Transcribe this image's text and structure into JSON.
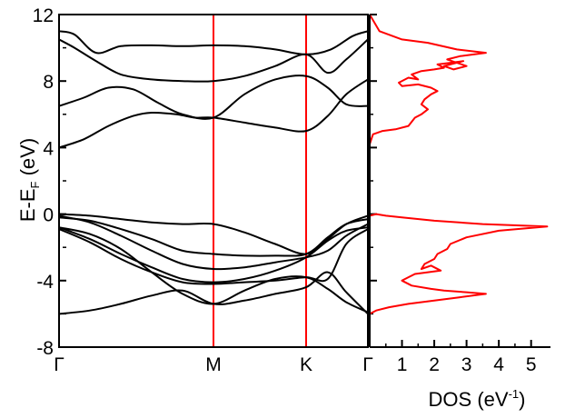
{
  "chart_data": [
    {
      "type": "line",
      "panel": "band structure",
      "ylabel": {
        "main": "E-E",
        "sub": "F",
        "unit": " (eV)"
      },
      "ylim": [
        -8,
        12
      ],
      "yticks": [
        -8,
        -4,
        0,
        4,
        8,
        12
      ],
      "ytick_labels": [
        "-8",
        "-4",
        "0",
        "4",
        "8",
        "12"
      ],
      "kpath_labels": [
        "Γ",
        "M",
        "K",
        "Γ"
      ],
      "kpath_positions": [
        0,
        0.5,
        0.8,
        1.0
      ],
      "vertical_line_color": "#ff0000",
      "band_color": "#000000",
      "bands": [
        {
          "x": [
            0,
            0.05,
            0.12,
            0.2,
            0.3,
            0.4,
            0.5,
            0.6,
            0.7,
            0.8,
            0.88,
            0.95,
            1.0
          ],
          "y": [
            11.0,
            10.8,
            9.7,
            10.1,
            10.15,
            10.1,
            10.15,
            10.1,
            9.9,
            9.6,
            9.9,
            10.7,
            11.0
          ]
        },
        {
          "x": [
            0,
            0.05,
            0.12,
            0.2,
            0.3,
            0.4,
            0.5,
            0.6,
            0.7,
            0.8,
            0.87,
            0.93,
            1.0
          ],
          "y": [
            10.5,
            10.0,
            9.2,
            8.4,
            8.1,
            8.0,
            8.0,
            8.3,
            8.9,
            9.6,
            8.5,
            9.3,
            10.5
          ]
        },
        {
          "x": [
            0,
            0.08,
            0.16,
            0.24,
            0.32,
            0.4,
            0.5,
            0.6,
            0.7,
            0.8,
            0.87,
            0.93,
            1.0
          ],
          "y": [
            6.5,
            7.0,
            7.6,
            7.5,
            6.7,
            6.0,
            5.8,
            7.2,
            8.1,
            8.3,
            7.6,
            6.6,
            6.5
          ]
        },
        {
          "x": [
            0,
            0.08,
            0.16,
            0.24,
            0.3,
            0.38,
            0.44,
            0.5,
            0.6,
            0.7,
            0.8,
            0.87,
            0.93,
            1.0
          ],
          "y": [
            4.0,
            4.5,
            5.3,
            5.9,
            6.1,
            6.0,
            5.8,
            5.8,
            5.5,
            5.2,
            5.0,
            5.9,
            7.2,
            8.1
          ]
        },
        {
          "x": [
            0,
            0.1,
            0.2,
            0.3,
            0.4,
            0.5,
            0.6,
            0.7,
            0.8,
            0.87,
            0.93,
            1.0
          ],
          "y": [
            0.0,
            -0.1,
            -0.3,
            -0.5,
            -0.6,
            -0.6,
            -1.1,
            -1.8,
            -2.4,
            -1.5,
            -0.6,
            -0.1
          ]
        },
        {
          "x": [
            0,
            0.1,
            0.2,
            0.3,
            0.4,
            0.5,
            0.6,
            0.7,
            0.8,
            0.87,
            0.93,
            1.0
          ],
          "y": [
            -0.2,
            -0.4,
            -0.9,
            -1.5,
            -2.2,
            -2.4,
            -2.5,
            -2.5,
            -2.4,
            -1.4,
            -0.6,
            -0.3
          ]
        },
        {
          "x": [
            0,
            0.1,
            0.2,
            0.3,
            0.4,
            0.5,
            0.6,
            0.7,
            0.8,
            0.87,
            0.93,
            1.0
          ],
          "y": [
            -0.8,
            -1.5,
            -2.4,
            -3.2,
            -3.9,
            -4.1,
            -3.9,
            -3.4,
            -2.6,
            -1.6,
            -1.0,
            -0.8
          ]
        },
        {
          "x": [
            0,
            0.1,
            0.2,
            0.3,
            0.4,
            0.5,
            0.6,
            0.7,
            0.8,
            0.87,
            0.93,
            1.0
          ],
          "y": [
            -0.9,
            -1.7,
            -2.7,
            -3.5,
            -4.1,
            -4.2,
            -4.1,
            -4.0,
            -3.8,
            -3.9,
            -1.8,
            -0.9
          ]
        },
        {
          "x": [
            0,
            0.1,
            0.2,
            0.3,
            0.4,
            0.5,
            0.6,
            0.7,
            0.8,
            0.87,
            0.93,
            1.0
          ],
          "y": [
            -0.1,
            -0.5,
            -1.3,
            -2.2,
            -3.0,
            -3.3,
            -3.2,
            -2.9,
            -2.6,
            -2.2,
            -1.3,
            -0.6
          ]
        },
        {
          "x": [
            0,
            0.1,
            0.2,
            0.3,
            0.4,
            0.5,
            0.6,
            0.7,
            0.8,
            0.87,
            0.93,
            1.0
          ],
          "y": [
            -6.0,
            -5.8,
            -5.4,
            -4.9,
            -4.6,
            -5.4,
            -5.2,
            -4.8,
            -4.4,
            -3.5,
            -4.7,
            -6.0
          ]
        },
        {
          "x": [
            0,
            0.1,
            0.2,
            0.3,
            0.4,
            0.5,
            0.6,
            0.7,
            0.8,
            0.87,
            0.93,
            1.0
          ],
          "y": [
            -0.8,
            -1.2,
            -2.1,
            -3.5,
            -4.8,
            -5.4,
            -4.6,
            -3.9,
            -3.8,
            -4.5,
            -5.3,
            -5.9
          ]
        }
      ]
    },
    {
      "type": "line",
      "panel": "density of states",
      "xlabel": {
        "main": "DOS (eV",
        "sup": "-1",
        "unit": ")"
      },
      "xlim": [
        0,
        5.6
      ],
      "xticks": [
        1,
        2,
        3,
        4,
        5
      ],
      "xtick_labels": [
        "1",
        "2",
        "3",
        "4",
        "5"
      ],
      "ylim": [
        -8,
        12
      ],
      "line_color": "#ff0000",
      "series": [
        {
          "x": [
            0.0,
            0.1,
            0.4,
            0.8,
            1.2,
            1.4,
            1.6,
            1.8,
            1.6,
            1.7,
            1.9,
            2.1,
            1.9,
            1.5,
            1.0,
            0.9,
            1.2,
            1.5,
            1.3,
            1.6,
            2.0,
            2.3,
            2.1,
            2.5,
            2.9,
            2.3,
            2.6,
            3.0,
            2.4,
            2.8,
            3.6,
            2.7,
            1.8,
            1.0,
            0.3,
            0.0
          ],
          "y": [
            4.2,
            4.8,
            5.0,
            5.1,
            5.3,
            5.8,
            6.0,
            6.3,
            6.6,
            6.9,
            7.2,
            7.4,
            7.6,
            7.8,
            7.7,
            7.9,
            8.2,
            8.1,
            8.4,
            8.6,
            8.7,
            8.8,
            9.0,
            9.1,
            9.2,
            8.9,
            8.7,
            8.9,
            9.3,
            9.5,
            9.7,
            9.9,
            10.3,
            10.5,
            11.0,
            12.0
          ]
        },
        {
          "x": [
            0.0,
            0.2,
            0.5,
            1.0,
            2.0,
            3.5,
            5.5,
            4.0,
            3.0,
            2.5,
            2.4,
            2.1,
            2.0,
            1.7,
            1.6,
            1.9,
            2.2,
            1.8,
            1.4,
            1.2,
            1.0,
            1.3,
            1.9,
            2.3,
            3.0,
            3.6,
            2.8,
            2.0,
            1.2,
            0.6,
            0.2,
            0.0
          ],
          "y": [
            -0.1,
            0.0,
            -0.1,
            -0.2,
            -0.4,
            -0.6,
            -0.75,
            -1.0,
            -1.4,
            -1.8,
            -2.1,
            -2.4,
            -2.7,
            -3.0,
            -3.3,
            -3.1,
            -3.4,
            -3.5,
            -3.6,
            -3.8,
            -4.0,
            -4.3,
            -4.5,
            -4.6,
            -4.7,
            -4.8,
            -5.0,
            -5.2,
            -5.4,
            -5.6,
            -5.8,
            -6.0
          ]
        }
      ]
    }
  ]
}
